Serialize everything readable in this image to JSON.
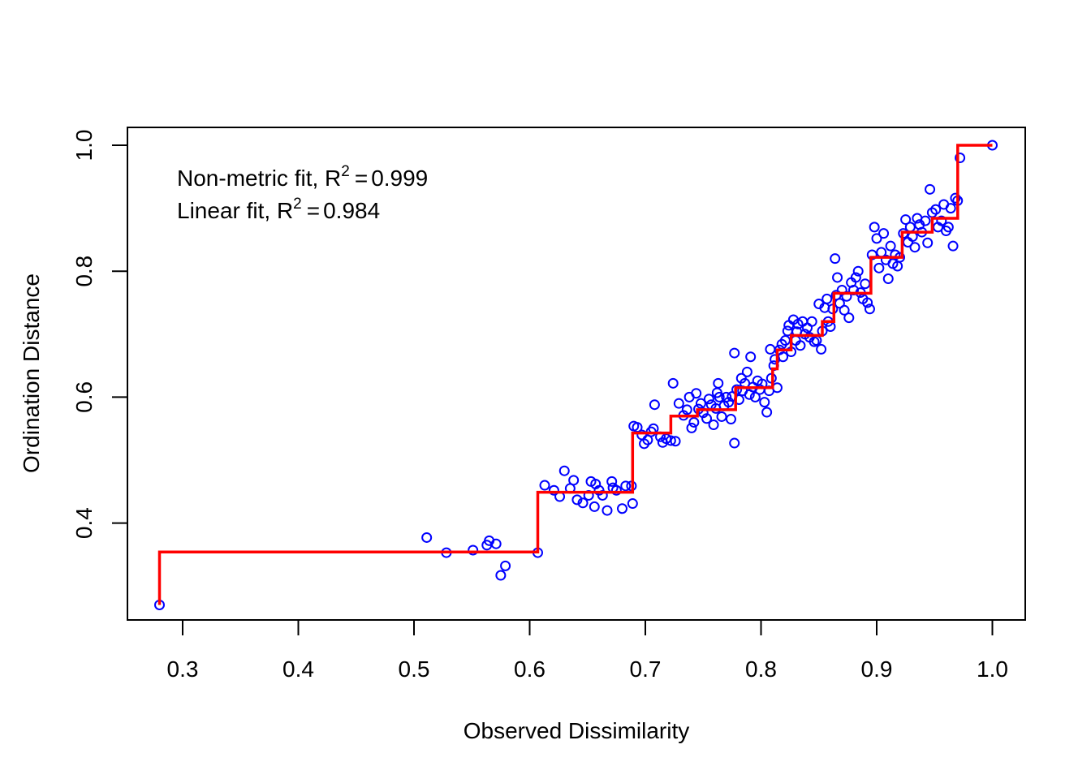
{
  "chart_data": {
    "type": "scatter",
    "title": "",
    "xlabel": "Observed Dissimilarity",
    "ylabel": "Ordination Distance",
    "xlim": [
      0.25,
      1.02
    ],
    "ylim": [
      0.255,
      1.03
    ],
    "xticks": [
      0.3,
      0.4,
      0.5,
      0.6,
      0.7,
      0.8,
      0.9,
      1.0
    ],
    "xtick_labels": [
      "0.3",
      "0.4",
      "0.5",
      "0.6",
      "0.7",
      "0.8",
      "0.9",
      "1.0"
    ],
    "yticks": [
      0.4,
      0.6,
      0.8,
      1.0
    ],
    "ytick_labels": [
      "0.4",
      "0.6",
      "0.8",
      "1.0"
    ],
    "grid": false,
    "annotations": [
      {
        "prefix": "Non-metric fit, R",
        "sup": "2",
        "eq": "=",
        "value": "0.999"
      },
      {
        "prefix": "Linear fit, R",
        "sup": "2",
        "eq": "=",
        "value": "0.984"
      }
    ],
    "point_color": "#0000ff",
    "step_color": "#ff0000",
    "points": [
      [
        0.28,
        0.27
      ],
      [
        0.511,
        0.377
      ],
      [
        0.528,
        0.353
      ],
      [
        0.551,
        0.357
      ],
      [
        0.563,
        0.365
      ],
      [
        0.565,
        0.372
      ],
      [
        0.571,
        0.367
      ],
      [
        0.575,
        0.317
      ],
      [
        0.579,
        0.332
      ],
      [
        0.607,
        0.353
      ],
      [
        0.613,
        0.46
      ],
      [
        0.621,
        0.452
      ],
      [
        0.626,
        0.442
      ],
      [
        0.63,
        0.483
      ],
      [
        0.635,
        0.455
      ],
      [
        0.638,
        0.468
      ],
      [
        0.641,
        0.437
      ],
      [
        0.646,
        0.432
      ],
      [
        0.651,
        0.444
      ],
      [
        0.653,
        0.466
      ],
      [
        0.656,
        0.426
      ],
      [
        0.657,
        0.462
      ],
      [
        0.66,
        0.452
      ],
      [
        0.663,
        0.444
      ],
      [
        0.667,
        0.42
      ],
      [
        0.671,
        0.466
      ],
      [
        0.672,
        0.456
      ],
      [
        0.675,
        0.452
      ],
      [
        0.68,
        0.423
      ],
      [
        0.683,
        0.459
      ],
      [
        0.688,
        0.459
      ],
      [
        0.689,
        0.431
      ],
      [
        0.69,
        0.554
      ],
      [
        0.693,
        0.552
      ],
      [
        0.697,
        0.54
      ],
      [
        0.699,
        0.526
      ],
      [
        0.702,
        0.532
      ],
      [
        0.705,
        0.545
      ],
      [
        0.707,
        0.55
      ],
      [
        0.708,
        0.588
      ],
      [
        0.713,
        0.537
      ],
      [
        0.715,
        0.528
      ],
      [
        0.718,
        0.534
      ],
      [
        0.722,
        0.531
      ],
      [
        0.724,
        0.622
      ],
      [
        0.726,
        0.53
      ],
      [
        0.729,
        0.59
      ],
      [
        0.733,
        0.571
      ],
      [
        0.736,
        0.58
      ],
      [
        0.738,
        0.6
      ],
      [
        0.74,
        0.551
      ],
      [
        0.742,
        0.56
      ],
      [
        0.744,
        0.606
      ],
      [
        0.746,
        0.581
      ],
      [
        0.748,
        0.59
      ],
      [
        0.75,
        0.575
      ],
      [
        0.753,
        0.566
      ],
      [
        0.755,
        0.597
      ],
      [
        0.757,
        0.588
      ],
      [
        0.759,
        0.556
      ],
      [
        0.761,
        0.582
      ],
      [
        0.762,
        0.607
      ],
      [
        0.763,
        0.622
      ],
      [
        0.764,
        0.6
      ],
      [
        0.766,
        0.569
      ],
      [
        0.768,
        0.586
      ],
      [
        0.77,
        0.6
      ],
      [
        0.772,
        0.592
      ],
      [
        0.774,
        0.565
      ],
      [
        0.775,
        0.601
      ],
      [
        0.777,
        0.527
      ],
      [
        0.777,
        0.67
      ],
      [
        0.779,
        0.612
      ],
      [
        0.781,
        0.596
      ],
      [
        0.783,
        0.63
      ],
      [
        0.784,
        0.61
      ],
      [
        0.786,
        0.622
      ],
      [
        0.788,
        0.64
      ],
      [
        0.79,
        0.604
      ],
      [
        0.791,
        0.664
      ],
      [
        0.793,
        0.616
      ],
      [
        0.795,
        0.6
      ],
      [
        0.797,
        0.626
      ],
      [
        0.799,
        0.612
      ],
      [
        0.801,
        0.621
      ],
      [
        0.803,
        0.592
      ],
      [
        0.805,
        0.576
      ],
      [
        0.807,
        0.61
      ],
      [
        0.808,
        0.676
      ],
      [
        0.809,
        0.63
      ],
      [
        0.811,
        0.65
      ],
      [
        0.812,
        0.66
      ],
      [
        0.814,
        0.615
      ],
      [
        0.816,
        0.675
      ],
      [
        0.818,
        0.684
      ],
      [
        0.819,
        0.664
      ],
      [
        0.821,
        0.69
      ],
      [
        0.823,
        0.705
      ],
      [
        0.824,
        0.714
      ],
      [
        0.826,
        0.672
      ],
      [
        0.828,
        0.723
      ],
      [
        0.83,
        0.69
      ],
      [
        0.831,
        0.704
      ],
      [
        0.832,
        0.716
      ],
      [
        0.834,
        0.682
      ],
      [
        0.836,
        0.72
      ],
      [
        0.838,
        0.7
      ],
      [
        0.84,
        0.71
      ],
      [
        0.842,
        0.695
      ],
      [
        0.844,
        0.72
      ],
      [
        0.846,
        0.688
      ],
      [
        0.848,
        0.69
      ],
      [
        0.85,
        0.748
      ],
      [
        0.852,
        0.676
      ],
      [
        0.853,
        0.705
      ],
      [
        0.855,
        0.742
      ],
      [
        0.857,
        0.756
      ],
      [
        0.858,
        0.72
      ],
      [
        0.86,
        0.712
      ],
      [
        0.862,
        0.74
      ],
      [
        0.864,
        0.82
      ],
      [
        0.865,
        0.762
      ],
      [
        0.866,
        0.79
      ],
      [
        0.868,
        0.749
      ],
      [
        0.87,
        0.77
      ],
      [
        0.872,
        0.738
      ],
      [
        0.874,
        0.76
      ],
      [
        0.876,
        0.726
      ],
      [
        0.878,
        0.782
      ],
      [
        0.88,
        0.77
      ],
      [
        0.882,
        0.79
      ],
      [
        0.884,
        0.8
      ],
      [
        0.886,
        0.766
      ],
      [
        0.888,
        0.756
      ],
      [
        0.89,
        0.78
      ],
      [
        0.892,
        0.75
      ],
      [
        0.894,
        0.74
      ],
      [
        0.896,
        0.826
      ],
      [
        0.898,
        0.87
      ],
      [
        0.9,
        0.852
      ],
      [
        0.902,
        0.805
      ],
      [
        0.904,
        0.83
      ],
      [
        0.906,
        0.86
      ],
      [
        0.908,
        0.818
      ],
      [
        0.91,
        0.788
      ],
      [
        0.912,
        0.84
      ],
      [
        0.914,
        0.812
      ],
      [
        0.916,
        0.826
      ],
      [
        0.918,
        0.808
      ],
      [
        0.92,
        0.822
      ],
      [
        0.923,
        0.86
      ],
      [
        0.925,
        0.882
      ],
      [
        0.927,
        0.846
      ],
      [
        0.929,
        0.87
      ],
      [
        0.931,
        0.855
      ],
      [
        0.933,
        0.838
      ],
      [
        0.935,
        0.884
      ],
      [
        0.937,
        0.874
      ],
      [
        0.939,
        0.862
      ],
      [
        0.942,
        0.88
      ],
      [
        0.944,
        0.845
      ],
      [
        0.946,
        0.93
      ],
      [
        0.948,
        0.893
      ],
      [
        0.951,
        0.898
      ],
      [
        0.953,
        0.87
      ],
      [
        0.956,
        0.88
      ],
      [
        0.958,
        0.906
      ],
      [
        0.96,
        0.864
      ],
      [
        0.962,
        0.87
      ],
      [
        0.964,
        0.9
      ],
      [
        0.966,
        0.84
      ],
      [
        0.968,
        0.916
      ],
      [
        0.97,
        0.912
      ],
      [
        0.972,
        0.98
      ],
      [
        1.0,
        1.0
      ]
    ],
    "step_fit": [
      [
        0.28,
        0.27
      ],
      [
        0.28,
        0.354
      ],
      [
        0.607,
        0.354
      ],
      [
        0.607,
        0.449
      ],
      [
        0.689,
        0.449
      ],
      [
        0.689,
        0.543
      ],
      [
        0.722,
        0.543
      ],
      [
        0.722,
        0.57
      ],
      [
        0.745,
        0.57
      ],
      [
        0.745,
        0.58
      ],
      [
        0.778,
        0.58
      ],
      [
        0.778,
        0.615
      ],
      [
        0.81,
        0.615
      ],
      [
        0.81,
        0.645
      ],
      [
        0.814,
        0.645
      ],
      [
        0.814,
        0.675
      ],
      [
        0.826,
        0.675
      ],
      [
        0.826,
        0.698
      ],
      [
        0.853,
        0.698
      ],
      [
        0.853,
        0.72
      ],
      [
        0.863,
        0.72
      ],
      [
        0.863,
        0.765
      ],
      [
        0.895,
        0.765
      ],
      [
        0.895,
        0.822
      ],
      [
        0.922,
        0.822
      ],
      [
        0.922,
        0.862
      ],
      [
        0.948,
        0.862
      ],
      [
        0.948,
        0.884
      ],
      [
        0.97,
        0.884
      ],
      [
        0.97,
        1.0
      ],
      [
        1.0,
        1.0
      ]
    ]
  }
}
